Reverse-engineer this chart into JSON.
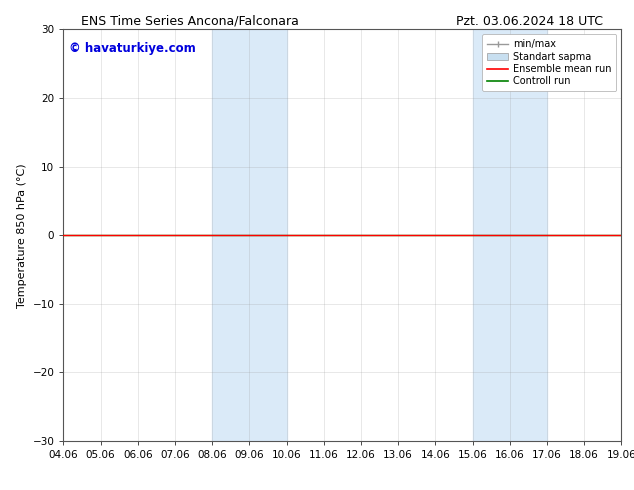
{
  "title_left": "ENS Time Series Ancona/Falconara",
  "title_right": "Pzt. 03.06.2024 18 UTC",
  "ylabel": "Temperature 850 hPa (°C)",
  "watermark": "© havaturkiye.com",
  "watermark_color": "#0000dd",
  "xlim_start": 0,
  "xlim_end": 15,
  "ylim": [
    -30,
    30
  ],
  "yticks": [
    -30,
    -20,
    -10,
    0,
    10,
    20,
    30
  ],
  "xtick_labels": [
    "04.06",
    "05.06",
    "06.06",
    "07.06",
    "08.06",
    "09.06",
    "10.06",
    "11.06",
    "12.06",
    "13.06",
    "14.06",
    "15.06",
    "16.06",
    "17.06",
    "18.06",
    "19.06"
  ],
  "shaded_bands": [
    {
      "x_start": 4,
      "x_end": 6,
      "color": "#daeaf8"
    },
    {
      "x_start": 11,
      "x_end": 13,
      "color": "#daeaf8"
    }
  ],
  "control_run_y": 0.0,
  "ensemble_mean_y": 0.0,
  "background_color": "#ffffff",
  "plot_bg_color": "#ffffff",
  "grid_color": "#999999",
  "legend_labels": [
    "min/max",
    "Standart sapma",
    "Ensemble mean run",
    "Controll run"
  ],
  "legend_colors": [
    "#999999",
    "#c8dff0",
    "#ff0000",
    "#008000"
  ],
  "minmax_color": "#999999",
  "font_size_title": 9,
  "font_size_axis": 8,
  "font_size_tick": 7.5,
  "font_size_watermark": 8.5,
  "font_size_legend": 7
}
